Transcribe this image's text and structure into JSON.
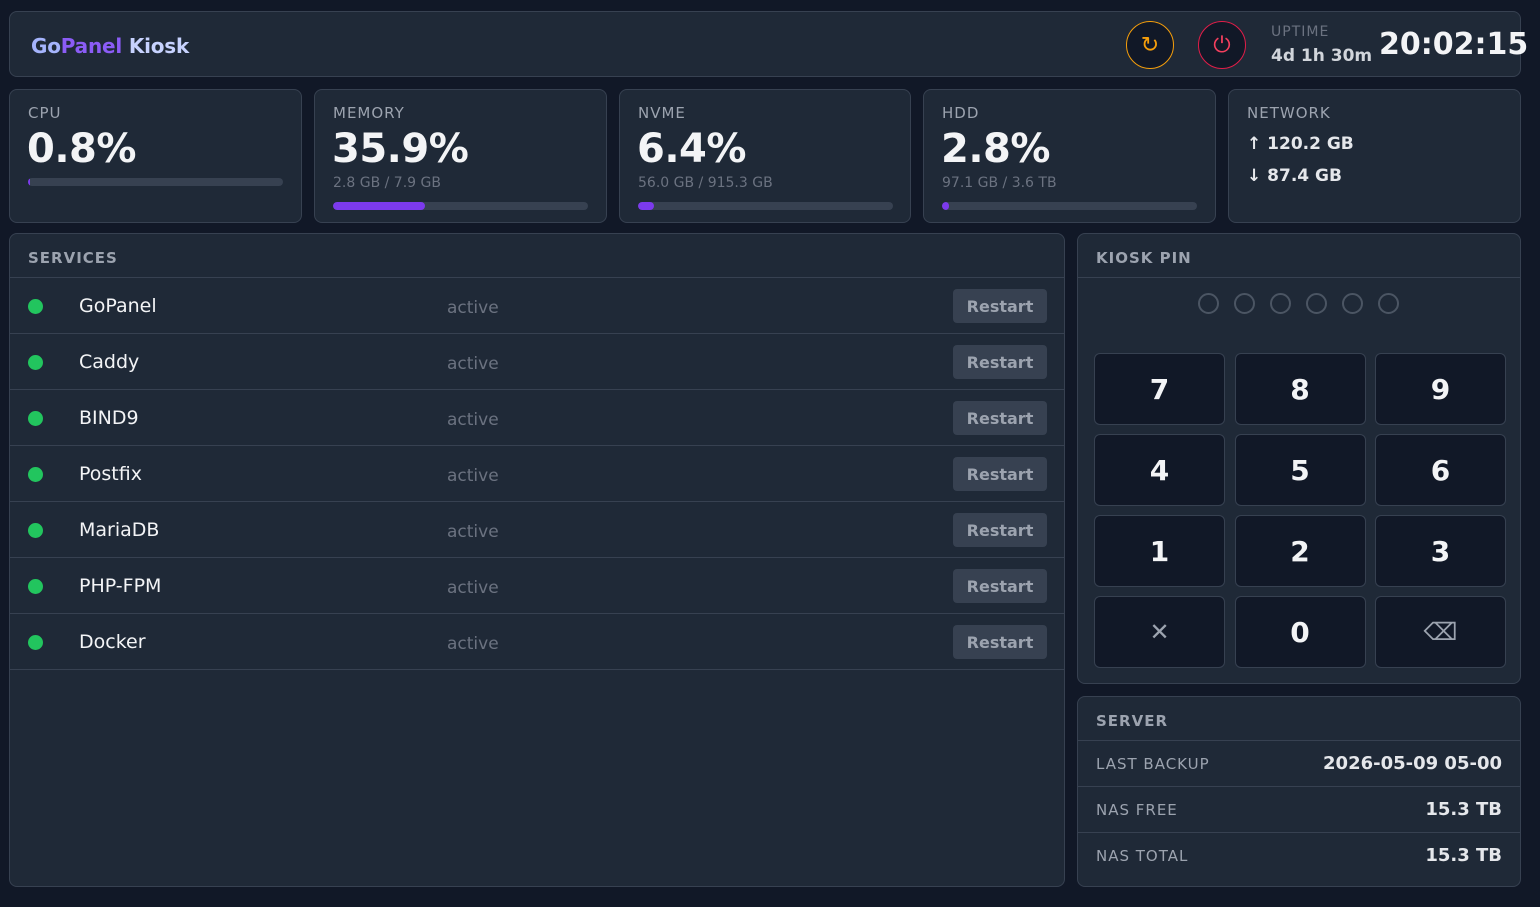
{
  "header": {
    "brand": {
      "part1": "Go",
      "part2": "Panel",
      "part3": "Kiosk"
    },
    "restart_icon": "↻",
    "power_icon": "⏻",
    "uptime_label": "UPTIME",
    "uptime_value": "4d 1h 30m",
    "clock": "20:02:15"
  },
  "stats": {
    "cpu": {
      "label": "CPU",
      "value": "0.8%",
      "percent": 0.8
    },
    "memory": {
      "label": "MEMORY",
      "value": "35.9%",
      "sub": "2.8 GB / 7.9 GB",
      "percent": 35.9
    },
    "nvme": {
      "label": "NVME",
      "value": "6.4%",
      "sub": "56.0 GB / 915.3 GB",
      "percent": 6.4
    },
    "hdd": {
      "label": "HDD",
      "value": "2.8%",
      "sub": "97.1 GB / 3.6 TB",
      "percent": 2.8
    },
    "network": {
      "label": "NETWORK",
      "up": "↑ 120.2 GB",
      "down": "↓ 87.4 GB"
    }
  },
  "services": {
    "title": "SERVICES",
    "restart_label": "Restart",
    "items": [
      {
        "name": "GoPanel",
        "status": "active"
      },
      {
        "name": "Caddy",
        "status": "active"
      },
      {
        "name": "BIND9",
        "status": "active"
      },
      {
        "name": "Postfix",
        "status": "active"
      },
      {
        "name": "MariaDB",
        "status": "active"
      },
      {
        "name": "PHP-FPM",
        "status": "active"
      },
      {
        "name": "Docker",
        "status": "active"
      }
    ]
  },
  "pin": {
    "title": "KIOSK PIN",
    "keys": [
      "7",
      "8",
      "9",
      "4",
      "5",
      "6",
      "1",
      "2",
      "3",
      "✕",
      "0",
      "⌫"
    ]
  },
  "server": {
    "title": "SERVER",
    "rows": [
      {
        "label": "LAST BACKUP",
        "value": "2026-05-09 05-00"
      },
      {
        "label": "NAS FREE",
        "value": "15.3 TB"
      },
      {
        "label": "NAS TOTAL",
        "value": "15.3 TB"
      }
    ]
  }
}
